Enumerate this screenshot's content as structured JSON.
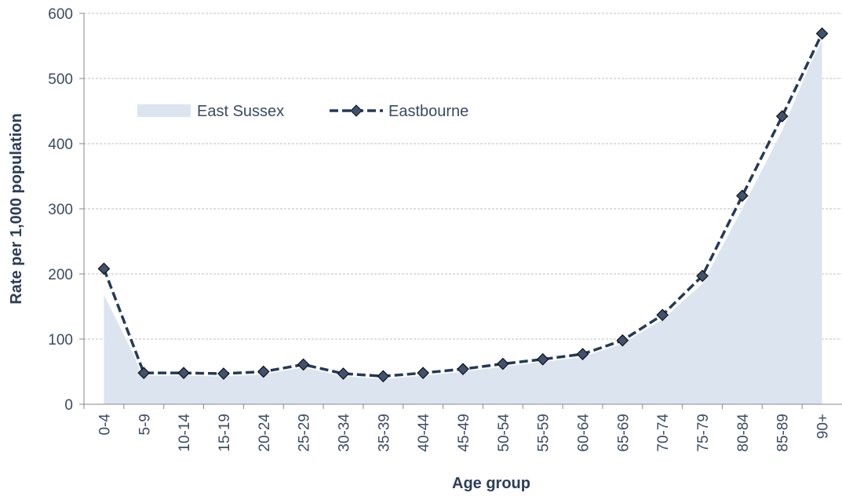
{
  "chart_data": {
    "type": "line",
    "x_label": "Age group",
    "y_label": "Rate per 1,000 population",
    "categories": [
      "0-4",
      "5-9",
      "10-14",
      "15-19",
      "20-24",
      "25-29",
      "30-34",
      "35-39",
      "40-44",
      "45-49",
      "50-54",
      "55-59",
      "60-64",
      "65-69",
      "70-74",
      "75-79",
      "80-84",
      "85-89",
      "90+"
    ],
    "series": [
      {
        "name": "East Sussex",
        "color": "#dce4f0",
        "fill": true,
        "values": [
          168,
          45,
          45,
          44,
          47,
          57,
          45,
          41,
          46,
          51,
          58,
          65,
          73,
          93,
          130,
          185,
          300,
          420,
          565
        ]
      },
      {
        "name": "Eastbourne",
        "color": "#243a5a",
        "fill": false,
        "dashed": true,
        "marker": "diamond",
        "values": [
          208,
          48,
          48,
          47,
          50,
          61,
          47,
          43,
          48,
          54,
          62,
          69,
          77,
          98,
          137,
          197,
          320,
          442,
          569
        ]
      }
    ],
    "ylim": [
      0,
      600
    ],
    "yticks": [
      0,
      100,
      200,
      300,
      400,
      500,
      600
    ],
    "grid": true
  }
}
